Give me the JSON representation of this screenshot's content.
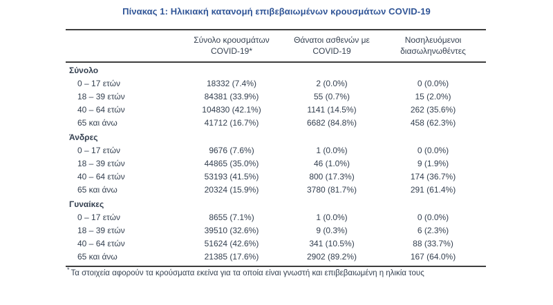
{
  "title": "Πίνακας 1: Ηλικιακή κατανομή επιβεβαιωμένων κρουσμάτων COVID-19",
  "colors": {
    "title_text": "#2f5496",
    "body_text": "#333f4f",
    "rule": "#3d3d3d",
    "background": "#ffffff"
  },
  "table": {
    "headers": [
      {
        "line1": "Σύνολο κρουσμάτων",
        "line2": "COVID-19*"
      },
      {
        "line1": "Θάνατοι ασθενών με",
        "line2": "COVID-19"
      },
      {
        "line1": "Νοσηλευόμενοι",
        "line2": "διασωληνωθέντες"
      }
    ],
    "groups": [
      {
        "label": "Σύνολο",
        "rows": [
          {
            "age": "0 – 17 ετών",
            "cases": "18332 (7.4%)",
            "deaths": "2 (0.0%)",
            "intubated": "0 (0.0%)"
          },
          {
            "age": "18 – 39 ετών",
            "cases": "84381 (33.9%)",
            "deaths": "55 (0.7%)",
            "intubated": "15 (2.0%)"
          },
          {
            "age": "40 – 64 ετών",
            "cases": "104830 (42.1%)",
            "deaths": "1141 (14.5%)",
            "intubated": "262 (35.6%)"
          },
          {
            "age": "65 και άνω",
            "cases": "41712 (16.7%)",
            "deaths": "6682 (84.8%)",
            "intubated": "458 (62.3%)"
          }
        ]
      },
      {
        "label": "Άνδρες",
        "rows": [
          {
            "age": "0 – 17 ετών",
            "cases": "9676 (7.6%)",
            "deaths": "1 (0.0%)",
            "intubated": "0 (0.0%)"
          },
          {
            "age": "18 – 39 ετών",
            "cases": "44865 (35.0%)",
            "deaths": "46 (1.0%)",
            "intubated": "9 (1.9%)"
          },
          {
            "age": "40 – 64 ετών",
            "cases": "53193 (41.5%)",
            "deaths": "800 (17.3%)",
            "intubated": "174 (36.7%)"
          },
          {
            "age": "65 και άνω",
            "cases": "20324 (15.9%)",
            "deaths": "3780 (81.7%)",
            "intubated": "291 (61.4%)"
          }
        ]
      },
      {
        "label": "Γυναίκες",
        "rows": [
          {
            "age": "0 – 17 ετών",
            "cases": "8655 (7.1%)",
            "deaths": "1 (0.0%)",
            "intubated": "0 (0.0%)"
          },
          {
            "age": "18 – 39 ετών",
            "cases": "39510 (32.6%)",
            "deaths": "9 (0.3%)",
            "intubated": "6 (2.3%)"
          },
          {
            "age": "40 – 64 ετών",
            "cases": "51624 (42.6%)",
            "deaths": "341 (10.5%)",
            "intubated": "88 (33.7%)"
          },
          {
            "age": "65 και άνω",
            "cases": "21385 (17.6%)",
            "deaths": "2902 (89.2%)",
            "intubated": "167 (64.0%)"
          }
        ]
      }
    ]
  },
  "footnote": {
    "marker": "*",
    "text": "Τα στοιχεία αφορούν τα κρούσματα εκείνα για τα οποία είναι γνωστή και επιβεβαιωμένη η ηλικία τους"
  }
}
